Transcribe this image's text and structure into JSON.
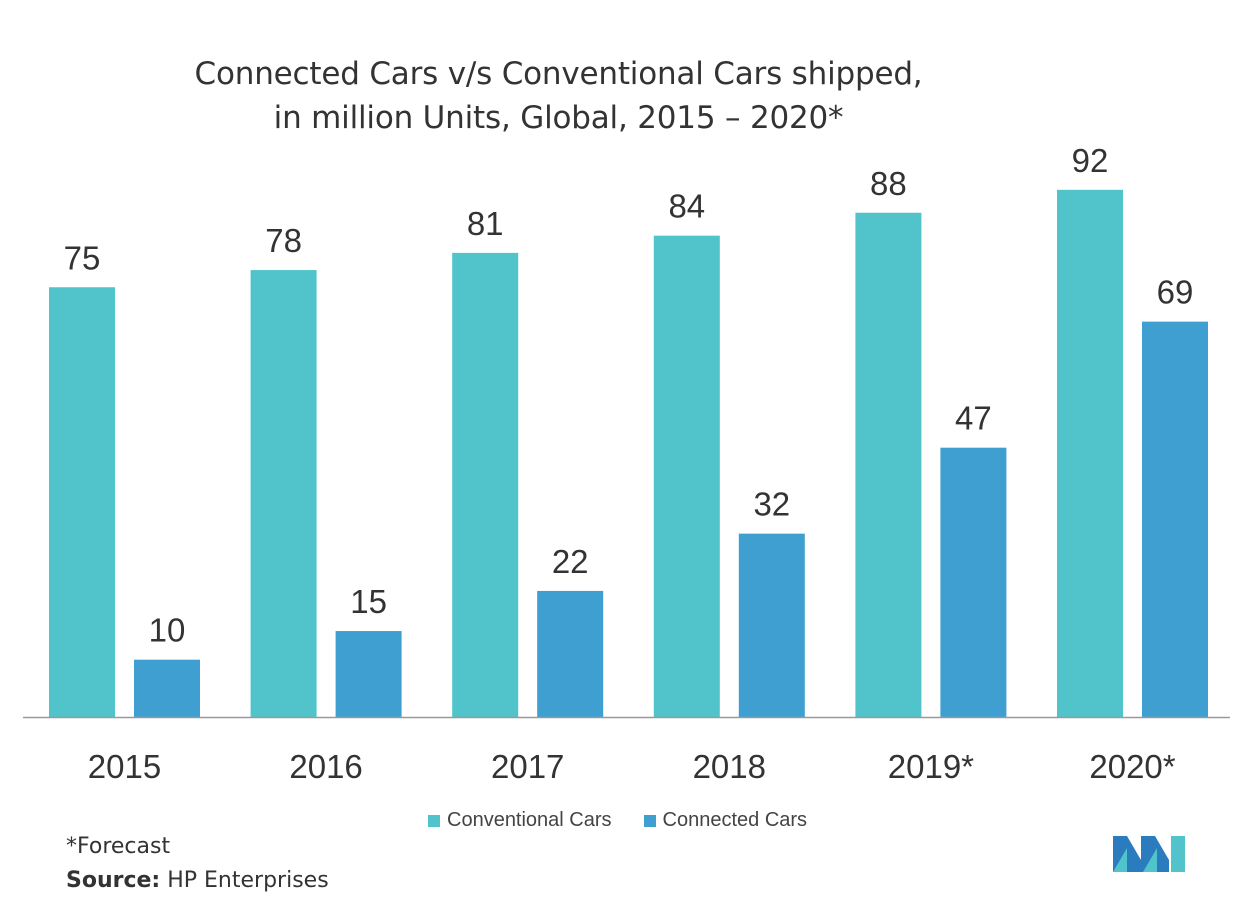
{
  "title": {
    "line1": "Connected Cars v/s Conventional Cars shipped,",
    "line2": "in million Units, Global, 2015 – 2020*"
  },
  "colors": {
    "conventional": "#50c4ca",
    "connected": "#3e9fd0",
    "axis": "#999999",
    "text": "#333333"
  },
  "chart_data": {
    "type": "bar",
    "title": "Connected Cars v/s Conventional Cars shipped, in million Units, Global, 2015 – 2020*",
    "categories": [
      "2015",
      "2016",
      "2017",
      "2018",
      "2019*",
      "2020*"
    ],
    "series": [
      {
        "name": "Conventional Cars",
        "values": [
          75,
          78,
          81,
          84,
          88,
          92
        ]
      },
      {
        "name": "Connected Cars",
        "values": [
          10,
          15,
          22,
          32,
          47,
          69
        ]
      }
    ],
    "xlabel": "",
    "ylabel": "",
    "ylim": [
      0,
      92
    ],
    "grid": false,
    "legend": "bottom",
    "data_labels": true
  },
  "legend": {
    "conventional_label": "Conventional Cars",
    "connected_label": "Connected Cars"
  },
  "footnote": "*Forecast",
  "source": {
    "label": "Source:",
    "text": " HP Enterprises"
  },
  "logo_icon": "mordor-intelligence-logo-icon"
}
